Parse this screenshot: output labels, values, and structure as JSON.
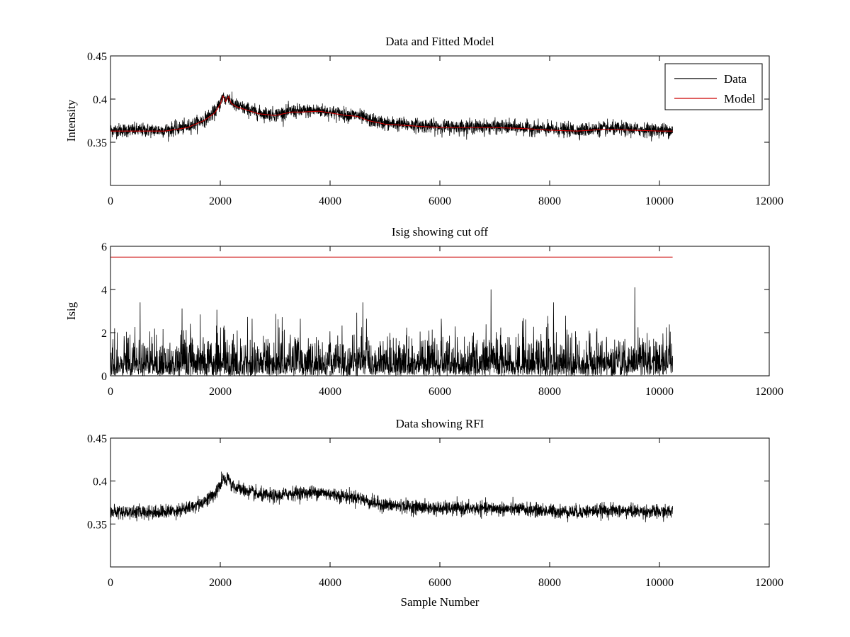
{
  "chart_data": [
    {
      "type": "line",
      "title": "Data and Fitted Model",
      "xlabel": "",
      "ylabel": "Intensity",
      "xlim": [
        0,
        12000
      ],
      "ylim": [
        0.3,
        0.45
      ],
      "xticks": [
        0,
        2000,
        4000,
        6000,
        8000,
        10000,
        12000
      ],
      "yticks": [
        0.35,
        0.4,
        0.45
      ],
      "legend": {
        "placement": "top-right",
        "entries": [
          "Data",
          "Model"
        ]
      },
      "grid": false,
      "series": [
        {
          "name": "Data",
          "color": "#000000",
          "noise": 0.004,
          "x": [
            0,
            500,
            1000,
            1400,
            1700,
            1900,
            2000,
            2050,
            2100,
            2150,
            2200,
            2300,
            2500,
            2700,
            3000,
            3300,
            3500,
            3800,
            4000,
            4300,
            4500,
            4700,
            5000,
            5500,
            6000,
            6500,
            7000,
            7500,
            8000,
            8500,
            9000,
            9500,
            10000,
            10240
          ],
          "y": [
            0.364,
            0.364,
            0.364,
            0.368,
            0.376,
            0.385,
            0.395,
            0.404,
            0.398,
            0.404,
            0.396,
            0.392,
            0.388,
            0.384,
            0.382,
            0.386,
            0.386,
            0.387,
            0.385,
            0.382,
            0.381,
            0.376,
            0.372,
            0.37,
            0.368,
            0.368,
            0.368,
            0.367,
            0.365,
            0.364,
            0.366,
            0.365,
            0.364,
            0.364
          ]
        },
        {
          "name": "Model",
          "color": "#cc0000",
          "noise": 0,
          "x": [
            0,
            500,
            1000,
            1400,
            1700,
            1900,
            2000,
            2050,
            2100,
            2150,
            2200,
            2300,
            2500,
            2700,
            3000,
            3300,
            3500,
            3800,
            4000,
            4300,
            4500,
            4700,
            5000,
            5500,
            6000,
            6500,
            7000,
            7500,
            8000,
            8500,
            9000,
            9500,
            10000,
            10240
          ],
          "y": [
            0.363,
            0.363,
            0.363,
            0.367,
            0.375,
            0.384,
            0.394,
            0.404,
            0.397,
            0.403,
            0.395,
            0.391,
            0.387,
            0.383,
            0.381,
            0.385,
            0.385,
            0.386,
            0.384,
            0.381,
            0.38,
            0.375,
            0.371,
            0.369,
            0.367,
            0.367,
            0.367,
            0.366,
            0.364,
            0.363,
            0.365,
            0.364,
            0.363,
            0.363
          ]
        }
      ]
    },
    {
      "type": "line",
      "title": "Isig showing cut off",
      "xlabel": "",
      "ylabel": "Isig",
      "xlim": [
        0,
        12000
      ],
      "ylim": [
        0,
        6
      ],
      "xticks": [
        0,
        2000,
        4000,
        6000,
        8000,
        10000,
        12000
      ],
      "yticks": [
        0,
        2,
        4,
        6
      ],
      "grid": false,
      "series": [
        {
          "name": "",
          "color": "#000000",
          "noise": 0,
          "kind": "abs-noise",
          "x": [
            0,
            10240
          ],
          "y": [
            0.8,
            0.8
          ],
          "peaks": [
            {
              "x": 6930,
              "y": 4.0
            },
            {
              "x": 9550,
              "y": 4.1
            }
          ]
        },
        {
          "name": "",
          "color": "#cc0000",
          "noise": 0,
          "x": [
            0,
            10240
          ],
          "y": [
            5.5,
            5.5
          ]
        }
      ]
    },
    {
      "type": "line",
      "title": "Data showing RFI",
      "xlabel": "Sample Number",
      "ylabel": "",
      "xlim": [
        0,
        12000
      ],
      "ylim": [
        0.3,
        0.45
      ],
      "xticks": [
        0,
        2000,
        4000,
        6000,
        8000,
        10000,
        12000
      ],
      "yticks": [
        0.35,
        0.4,
        0.45
      ],
      "grid": false,
      "series": [
        {
          "name": "",
          "color": "#000000",
          "noise": 0.004,
          "x": [
            0,
            500,
            1000,
            1400,
            1700,
            1900,
            2000,
            2050,
            2100,
            2150,
            2200,
            2300,
            2500,
            2700,
            3000,
            3300,
            3500,
            3800,
            4000,
            4300,
            4500,
            4700,
            5000,
            5500,
            6000,
            6500,
            7000,
            7500,
            8000,
            8500,
            9000,
            9500,
            10000,
            10240
          ],
          "y": [
            0.364,
            0.364,
            0.364,
            0.368,
            0.376,
            0.385,
            0.395,
            0.404,
            0.398,
            0.404,
            0.396,
            0.392,
            0.388,
            0.384,
            0.382,
            0.386,
            0.386,
            0.387,
            0.385,
            0.382,
            0.381,
            0.376,
            0.372,
            0.37,
            0.368,
            0.368,
            0.368,
            0.367,
            0.365,
            0.364,
            0.366,
            0.365,
            0.364,
            0.364
          ]
        }
      ]
    }
  ]
}
